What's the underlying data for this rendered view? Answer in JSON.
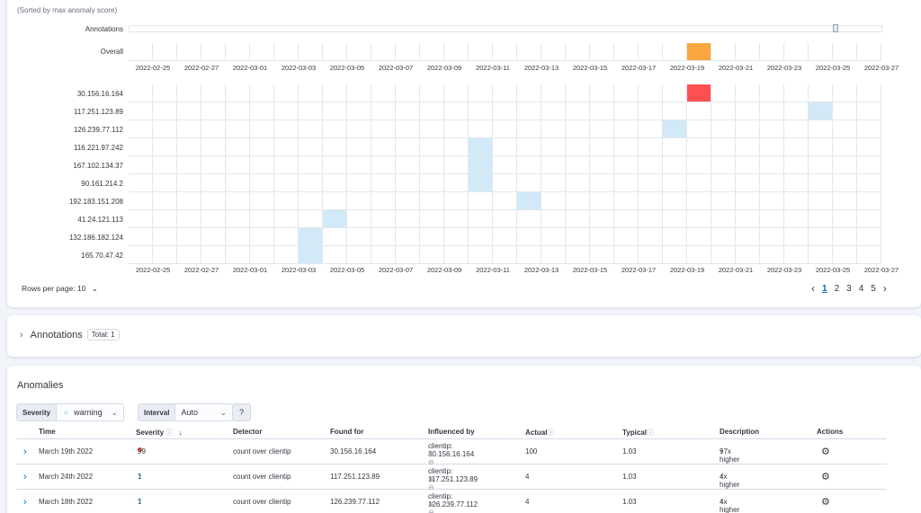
{
  "swimlane": {
    "sorted_note": "(Sorted by max anomaly score)",
    "annotations_label": "Annotations",
    "overall_label": "Overall",
    "dates": [
      "2022-02-25",
      "2022-02-27",
      "2022-03-01",
      "2022-03-03",
      "2022-03-05",
      "2022-03-07",
      "2022-03-09",
      "2022-03-11",
      "2022-03-13",
      "2022-03-15",
      "2022-03-17",
      "2022-03-19",
      "2022-03-21",
      "2022-03-23",
      "2022-03-25",
      "2022-03-27"
    ],
    "rows": [
      "30.156.16.164",
      "117.251.123.89",
      "126.239.77.112",
      "116.221.97.242",
      "167.102.134.37",
      "90.161.214.2",
      "192.183.151.208",
      "41.24.121.113",
      "132.186.182.124",
      "165.70.47.42"
    ],
    "colors": {
      "critical": "#fe5050",
      "major": "#fba740",
      "warning": "#d2e9f7"
    },
    "rows_per_page": "Rows per page: 10",
    "pages": [
      "1",
      "2",
      "3",
      "4",
      "5"
    ],
    "current_page": "1"
  },
  "annotations_panel": {
    "title": "Annotations",
    "badge": "Total: 1"
  },
  "anomalies": {
    "title": "Anomalies",
    "severity_label": "Severity",
    "severity_value": "warning",
    "interval_label": "Interval",
    "interval_value": "Auto",
    "columns": [
      "Time",
      "Severity",
      "Detector",
      "Found for",
      "Influenced by",
      "Actual",
      "Typical",
      "Description",
      "Actions"
    ],
    "rows": [
      {
        "time": "March 19th 2022",
        "severity": "99",
        "detector": "count over clientip",
        "found_for": "30.156.16.164",
        "influenced": "clientip: 30.156.16.164",
        "actual": "100",
        "typical": "1.03",
        "description": "97x higher",
        "sev_color": "#fe5050"
      },
      {
        "time": "March 24th 2022",
        "severity": "1",
        "detector": "count over clientip",
        "found_for": "117.251.123.89",
        "influenced": "clientip: 117.251.123.89",
        "actual": "4",
        "typical": "1.03",
        "description": "4x higher",
        "sev_color": "#d2e9f7"
      },
      {
        "time": "March 18th 2022",
        "severity": "1",
        "detector": "count over clientip",
        "found_for": "126.239.77.112",
        "influenced": "clientip: 126.239.77.112",
        "actual": "4",
        "typical": "1.03",
        "description": "4x higher",
        "sev_color": "#d2e9f7"
      }
    ]
  }
}
